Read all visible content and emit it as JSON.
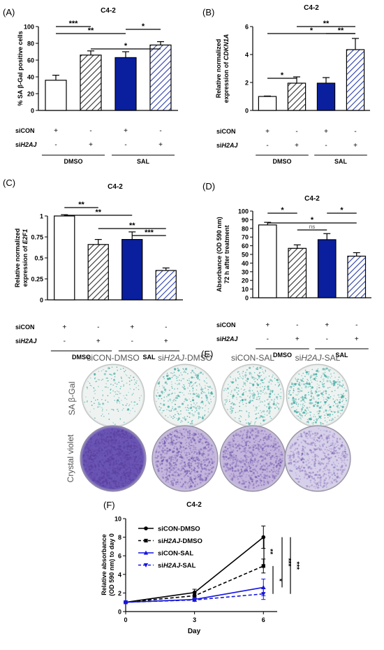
{
  "colors": {
    "white_bar": "#ffffff",
    "navy_bar": "#0a1f9e",
    "hatch_dark": "#333333",
    "hatch_blue": "#2a3ea8",
    "line_black": "#000000",
    "line_blue": "#1515e0",
    "sa_bgal_stain": "#3aa8a0",
    "crystal_violet": "#5a3f9e"
  },
  "chart_data": [
    {
      "panel": "(A)",
      "type": "bar",
      "title": "C4-2",
      "ylabel": "% SA β-Gal positive cells",
      "ylim": [
        0,
        100
      ],
      "yticks": [
        "0",
        "20",
        "40",
        "60",
        "80",
        "100"
      ],
      "bars": [
        {
          "value": 36,
          "error": 6,
          "fill": "white"
        },
        {
          "value": 66,
          "error": 5,
          "fill": "hatch-dark"
        },
        {
          "value": 63,
          "error": 7,
          "fill": "navy"
        },
        {
          "value": 78,
          "error": 4,
          "fill": "hatch-blue"
        }
      ],
      "sig": [
        {
          "from": 0,
          "to": 1,
          "label": "***"
        },
        {
          "from": 0,
          "to": 2,
          "label": "**"
        },
        {
          "from": 2,
          "to": 3,
          "label": "*"
        },
        {
          "from": 1,
          "to": 3,
          "label": "*"
        }
      ],
      "rows": [
        {
          "label": "siCON",
          "signs": [
            "+",
            "-",
            "+",
            "-"
          ]
        },
        {
          "label_prefix": "si",
          "label_italic": "H2AJ",
          "signs": [
            "-",
            "+",
            "-",
            "+"
          ]
        }
      ],
      "groups": [
        "DMSO",
        "SAL"
      ]
    },
    {
      "panel": "(B)",
      "type": "bar",
      "title": "C4-2",
      "ylabel_lines": [
        "Relative normalized",
        "expression of "
      ],
      "ylabel_italic": "CDKN1A",
      "ylim": [
        0,
        6
      ],
      "yticks": [
        "0",
        "2",
        "4",
        "6"
      ],
      "bars": [
        {
          "value": 1.0,
          "error": 0.03,
          "fill": "white"
        },
        {
          "value": 1.95,
          "error": 0.45,
          "fill": "hatch-dark"
        },
        {
          "value": 1.95,
          "error": 0.4,
          "fill": "navy"
        },
        {
          "value": 4.35,
          "error": 0.8,
          "fill": "hatch-blue"
        }
      ],
      "sig": [
        {
          "from": 0,
          "to": 1,
          "label": "*"
        },
        {
          "from": 0,
          "to": 3,
          "label": "*"
        },
        {
          "from": 1,
          "to": 3,
          "label": "**"
        },
        {
          "from": 2,
          "to": 3,
          "label": "**"
        }
      ],
      "rows": [
        {
          "label": "siCON",
          "signs": [
            "+",
            "-",
            "+",
            "-"
          ]
        },
        {
          "label_prefix": "si",
          "label_italic": "H2AJ",
          "signs": [
            "-",
            "+",
            "-",
            "+"
          ]
        }
      ],
      "groups": [
        "DMSO",
        "SAL"
      ]
    },
    {
      "panel": "(C)",
      "type": "bar",
      "title": "C4-2",
      "ylabel_lines": [
        "Relative normalized",
        "expression of "
      ],
      "ylabel_italic": "E2F1",
      "ylim": [
        0,
        1.0
      ],
      "yticks": [
        "0",
        "0.25",
        "0.5",
        "0.75",
        "1"
      ],
      "bars": [
        {
          "value": 1.0,
          "error": 0.015,
          "fill": "white"
        },
        {
          "value": 0.66,
          "error": 0.06,
          "fill": "hatch-dark"
        },
        {
          "value": 0.72,
          "error": 0.09,
          "fill": "navy"
        },
        {
          "value": 0.35,
          "error": 0.03,
          "fill": "hatch-blue"
        }
      ],
      "sig": [
        {
          "from": 0,
          "to": 1,
          "label": "**"
        },
        {
          "from": 0,
          "to": 2,
          "label": "**"
        },
        {
          "from": 1,
          "to": 3,
          "label": "**"
        },
        {
          "from": 2,
          "to": 3,
          "label": "***"
        }
      ],
      "rows": [
        {
          "label": "siCON",
          "signs": [
            "+",
            "-",
            "+",
            "-"
          ]
        },
        {
          "label_prefix": "si",
          "label_italic": "H2AJ",
          "signs": [
            "-",
            "+",
            "-",
            "+"
          ]
        }
      ],
      "groups": [
        "DMSO",
        "SAL"
      ]
    },
    {
      "panel": "(D)",
      "type": "bar",
      "title": "C4-2",
      "ylabel_lines": [
        "Absorbance (OD 590 nm)",
        "72 h after treatment"
      ],
      "ylim": [
        0,
        100
      ],
      "yticks": [
        "0",
        "10",
        "20",
        "30",
        "40",
        "50",
        "60",
        "70",
        "80",
        "90",
        "100"
      ],
      "bars": [
        {
          "value": 84,
          "error": 3,
          "fill": "white"
        },
        {
          "value": 57,
          "error": 4,
          "fill": "hatch-dark"
        },
        {
          "value": 67,
          "error": 7,
          "fill": "navy"
        },
        {
          "value": 48,
          "error": 4,
          "fill": "hatch-blue"
        }
      ],
      "sig": [
        {
          "from": 0,
          "to": 1,
          "label": "*"
        },
        {
          "from": 0,
          "to": 3,
          "label": "*"
        },
        {
          "from": 1,
          "to": 2,
          "label": "ns"
        },
        {
          "from": 2,
          "to": 3,
          "label": "*"
        }
      ],
      "rows": [
        {
          "label": "siCON",
          "signs": [
            "+",
            "-",
            "+",
            "-"
          ]
        },
        {
          "label_prefix": "si",
          "label_italic": "H2AJ",
          "signs": [
            "-",
            "+",
            "-",
            "+"
          ]
        }
      ],
      "groups": [
        "DMSO",
        "SAL"
      ]
    },
    {
      "panel": "(F)",
      "type": "line",
      "title": "C4-2",
      "xlabel": "Day",
      "ylabel_lines": [
        "Relative absorbance",
        "(OD 590 nm) to day 0"
      ],
      "x": [
        0,
        3,
        6
      ],
      "xticks": [
        "0",
        "3",
        "6"
      ],
      "xlim": [
        0,
        6.6
      ],
      "ylim": [
        0,
        10
      ],
      "yticks": [
        "0",
        "2",
        "4",
        "6",
        "8",
        "10"
      ],
      "legend_position": "top-left",
      "series": [
        {
          "name": "siCON-DMSO",
          "values": [
            1.0,
            2.05,
            8.0
          ],
          "errors": [
            0.05,
            0.35,
            1.2
          ],
          "color": "black",
          "dash": false,
          "marker": "circle"
        },
        {
          "name_prefix": "si",
          "name_italic": "H2AJ",
          "name_suffix": "-DMSO",
          "values": [
            1.0,
            1.7,
            4.9
          ],
          "errors": [
            0.05,
            0.3,
            0.75
          ],
          "color": "black",
          "dash": true,
          "marker": "square"
        },
        {
          "name": "siCON-SAL",
          "values": [
            1.0,
            1.3,
            2.6
          ],
          "errors": [
            0.05,
            0.2,
            0.9
          ],
          "color": "blue",
          "dash": false,
          "marker": "triangle-up"
        },
        {
          "name_prefix": "si",
          "name_italic": "H2AJ",
          "name_suffix": "-SAL",
          "values": [
            1.0,
            1.25,
            1.9
          ],
          "errors": [
            0.05,
            0.15,
            0.6
          ],
          "color": "blue",
          "dash": true,
          "marker": "triangle-down"
        }
      ],
      "sig": [
        "**",
        "*",
        "***",
        "***"
      ]
    }
  ],
  "panel_e": {
    "label": "(E)",
    "columns": [
      {
        "text": "siCON-DMSO"
      },
      {
        "prefix": "si",
        "italic": "H2AJ",
        "suffix": "-DMSO"
      },
      {
        "text": "siCON-SAL"
      },
      {
        "prefix": "si",
        "italic": "H2AJ",
        "suffix": "-SAL"
      }
    ],
    "rows": [
      "SA β-Gal",
      "Crystal violet"
    ],
    "sa_density": [
      0.12,
      0.38,
      0.4,
      0.6
    ],
    "cv_density": [
      0.95,
      0.55,
      0.5,
      0.35
    ]
  }
}
